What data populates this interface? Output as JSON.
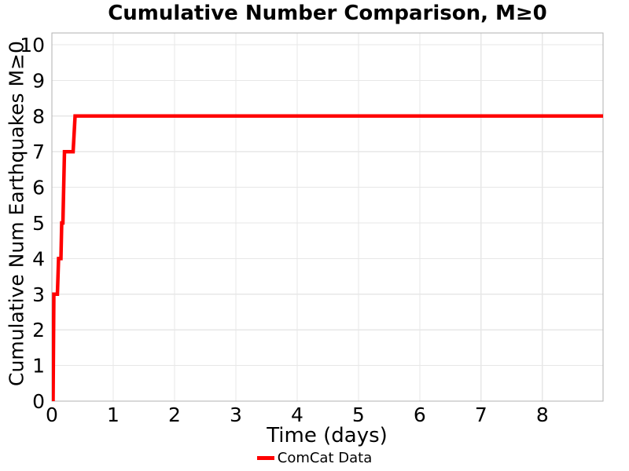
{
  "title": "Cumulative Number Comparison, M≥0",
  "axes": {
    "xlabel": "Time (days)",
    "ylabel": "Cumulative Num Earthquakes M≥0"
  },
  "legend": {
    "items": [
      {
        "label": "ComCat Data",
        "color": "#ff0000",
        "marker": "line"
      }
    ]
  },
  "colors": {
    "background": "#ffffff",
    "text": "#000000",
    "grid": "#e7e7e7",
    "frame": "#b2b2b2",
    "line": "#ff0000"
  },
  "chart_data": {
    "type": "line",
    "subtype": "cumulative-step",
    "title": "Cumulative Number Comparison, M≥0",
    "xlabel": "Time (days)",
    "ylabel": "Cumulative Num Earthquakes M≥0",
    "xlim": [
      0,
      8.99
    ],
    "ylim": [
      0,
      10.33
    ],
    "x_ticks": [
      0,
      1,
      2,
      3,
      4,
      5,
      6,
      7,
      8
    ],
    "y_ticks": [
      0,
      1,
      2,
      3,
      4,
      5,
      6,
      7,
      8,
      9,
      10
    ],
    "grid": true,
    "legend_position": "below-axes-center",
    "series": [
      {
        "name": "ComCat Data",
        "color": "#ff0000",
        "line_width": 4.5,
        "points": [
          [
            0.019,
            0
          ],
          [
            0.032,
            3
          ],
          [
            0.09,
            3
          ],
          [
            0.109,
            4
          ],
          [
            0.147,
            4
          ],
          [
            0.16,
            5
          ],
          [
            0.179,
            5
          ],
          [
            0.205,
            7
          ],
          [
            0.346,
            7
          ],
          [
            0.378,
            8
          ],
          [
            8.99,
            8
          ]
        ]
      }
    ]
  }
}
